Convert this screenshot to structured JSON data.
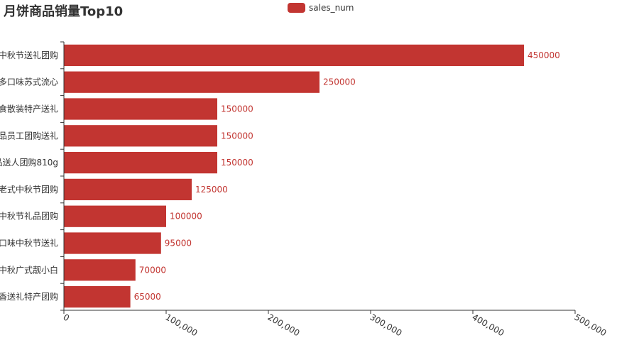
{
  "chart_data": {
    "type": "bar",
    "orientation": "horizontal",
    "title": "月饼商品销量Top10",
    "categories": [
      "中秋节送礼团购",
      "多口味苏式流心",
      "食散装特产送礼",
      "品员工团购送礼",
      "品送人团购810g",
      "老式中秋节团购",
      "中秋节礼品团购",
      "口味中秋节送礼",
      "中秋广式靓小白",
      "香送礼特产团购"
    ],
    "series": [
      {
        "name": "sales_num",
        "color": "#c23531",
        "values": [
          450000,
          250000,
          150000,
          150000,
          150000,
          125000,
          100000,
          95000,
          70000,
          65000
        ]
      }
    ],
    "xlim": [
      0,
      500000
    ],
    "x_ticks": [
      "0",
      "100,000",
      "200,000",
      "300,000",
      "400,000",
      "500,000"
    ],
    "x_tick_values": [
      0,
      100000,
      200000,
      300000,
      400000,
      500000
    ],
    "xlabel": "",
    "ylabel": "",
    "grid": false,
    "legend_position": "top-center"
  }
}
